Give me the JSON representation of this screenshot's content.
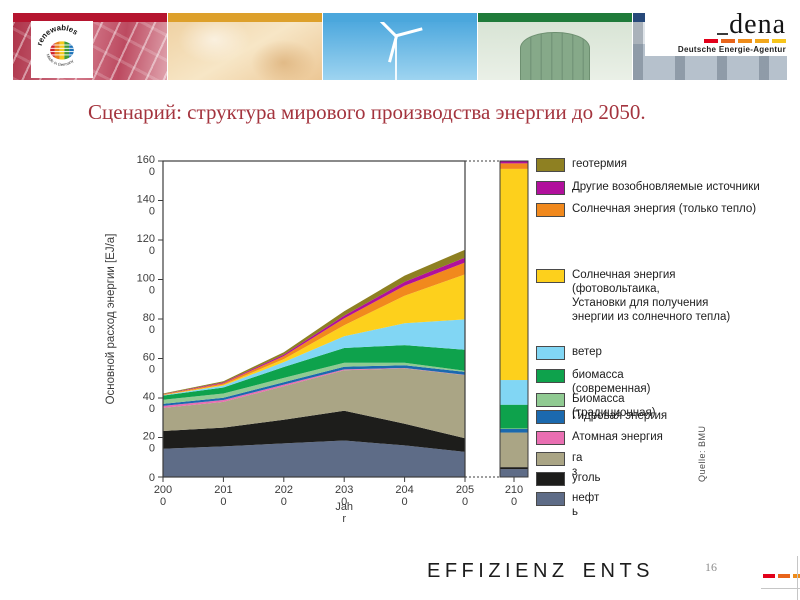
{
  "slide": {
    "title": "Сценарий: структура мирового производства энергии до 2050.",
    "footer_text": "EFFIZIENZ ENTS",
    "page_number": "16",
    "source_note": "Quelle: BMU"
  },
  "header": {
    "renewables_logo": {
      "arc_text": "renewables",
      "bottom_text": "Made in Germany"
    },
    "dena_logo": {
      "name": "dena",
      "subtitle": "Deutsche Energie-Agentur",
      "dash_colors": [
        "#e2001a",
        "#e8641a",
        "#ee8c1a",
        "#f2a71b",
        "#f7c51b"
      ]
    },
    "tile_bar_colors": [
      "#b5152f",
      "#dda02b",
      "#4ba7dc",
      "#1f7b3a",
      "#27497a"
    ],
    "tile_photos": [
      "solar-panels",
      "marble",
      "wind-turbine",
      "biogas-silo",
      "hydro-dam"
    ]
  },
  "footer": {
    "dash_colors": [
      "#e2001a",
      "#e8641a",
      "#ee8c1a",
      "#f2a71b",
      "#f7c51b"
    ]
  },
  "chart_data": {
    "type": "area",
    "stacked": true,
    "xlabel": "Jahr",
    "ylabel": "Основной расход энергии [EJ/a]",
    "unit": "EJ/a",
    "x_main": [
      2000,
      2010,
      2020,
      2030,
      2040,
      2050
    ],
    "x_extra": 2100,
    "xticks": [
      2000,
      2010,
      2020,
      2030,
      2040,
      2050,
      2100
    ],
    "yticks": [
      0,
      200,
      400,
      600,
      800,
      1000,
      1200,
      1400,
      1600
    ],
    "ylim": [
      0,
      1600
    ],
    "values_are_estimates": true,
    "series": [
      {
        "name": "нефть",
        "color": "#5e6c87",
        "values": [
          143,
          155,
          170,
          185,
          160,
          127
        ],
        "value_2100": 40
      },
      {
        "name": "уголь",
        "color": "#1d1d1b",
        "values": [
          90,
          95,
          120,
          150,
          110,
          69
        ],
        "value_2100": 10
      },
      {
        "name": "газ",
        "color": "#aaa585",
        "values": [
          117,
          130,
          170,
          205,
          280,
          320
        ],
        "value_2100": 175
      },
      {
        "name": "Атомная энергия",
        "color": "#e96fb2",
        "values": [
          10,
          10,
          8,
          5,
          2,
          1
        ],
        "value_2100": 0
      },
      {
        "name": "Гидровая энергия",
        "color": "#1b69ae",
        "values": [
          10,
          11,
          12,
          13,
          14,
          15
        ],
        "value_2100": 18
      },
      {
        "name": "Биомасса (традиционная)",
        "color": "#90ca92",
        "values": [
          21,
          22,
          22,
          20,
          12,
          6
        ],
        "value_2100": 3
      },
      {
        "name": "биомасса (современная)",
        "color": "#0ea24c",
        "values": [
          21,
          30,
          55,
          75,
          90,
          106
        ],
        "value_2100": 120
      },
      {
        "name": "ветер",
        "color": "#81d6f4",
        "values": [
          2,
          10,
          25,
          60,
          110,
          154
        ],
        "value_2100": 125
      },
      {
        "name": "Солнечная энергия (фотовольтаика, Установки для получения энергии из солнечного тепла)",
        "color": "#fdd01c",
        "values": [
          1,
          4,
          15,
          55,
          140,
          228
        ],
        "value_2100": 1069
      },
      {
        "name": "Солнечная энергия (только тепло)",
        "color": "#f1891d",
        "values": [
          3,
          8,
          15,
          35,
          50,
          60
        ],
        "value_2100": 28
      },
      {
        "name": "Другие возобновляемые источники",
        "color": "#b1109c",
        "values": [
          2,
          4,
          8,
          14,
          20,
          25
        ],
        "value_2100": 20
      },
      {
        "name": "геотермия",
        "color": "#8e8022",
        "values": [
          3,
          6,
          12,
          22,
          32,
          40
        ],
        "value_2100": 45
      }
    ],
    "legend": [
      {
        "label": "геотермия",
        "color": "#8e8022"
      },
      {
        "label": "Другие возобновляемые источники",
        "color": "#b1109c"
      },
      {
        "label": "Солнечная энергия (только тепло)",
        "color": "#f1891d"
      },
      {
        "label": "Солнечная энергия\n(фотовольтаика,\nУстановки для получения\nэнергии из солнечного тепла)",
        "color": "#fdd01c"
      },
      {
        "label": "ветер",
        "color": "#81d6f4"
      },
      {
        "label": "биомасса\n(современная)",
        "color": "#0ea24c"
      },
      {
        "label": "Биомасса\n(традиционная)",
        "color": "#90ca92"
      },
      {
        "label": "Гидровая энергия",
        "color": "#1b69ae"
      },
      {
        "label": "Атомная энергия",
        "color": "#e96fb2"
      },
      {
        "label": "га\nз",
        "color": "#aaa585"
      },
      {
        "label": "уголь",
        "color": "#1d1d1b"
      },
      {
        "label": "нефт\nь",
        "color": "#5e6c87"
      }
    ]
  }
}
